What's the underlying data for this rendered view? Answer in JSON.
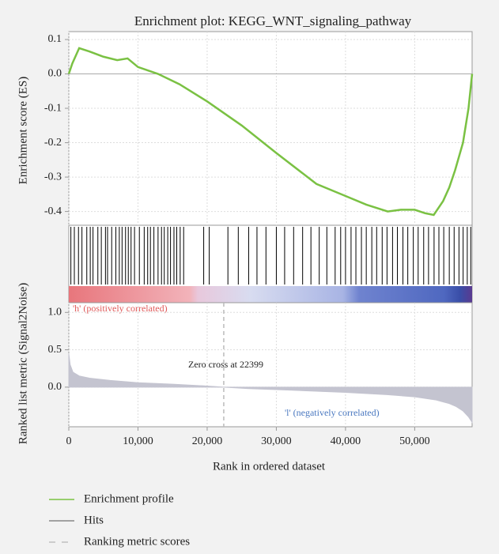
{
  "chart_data": [
    {
      "type": "line",
      "title": "Enrichment plot: KEGG_WNT_signaling_pathway",
      "ylabel": "Enrichment score (ES)",
      "xlim": [
        0,
        58300
      ],
      "ylim": [
        -0.44,
        0.123
      ],
      "yticks": [
        0.1,
        {
          "value": 0,
          "label": "0.0"
        },
        -0.1,
        -0.2,
        -0.3,
        -0.4
      ],
      "x": [
        0,
        500,
        1500,
        3000,
        5000,
        7000,
        8500,
        10000,
        12900,
        16000,
        20000,
        25000,
        30000,
        35800,
        40000,
        43000,
        46100,
        48000,
        50000,
        51500,
        52750,
        54100,
        55000,
        55840,
        56980,
        57780,
        58300
      ],
      "series": [
        {
          "name": "Enrichment profile",
          "color": "#7ac143",
          "values": [
            0,
            0.03,
            0.075,
            0.065,
            0.05,
            0.04,
            0.045,
            0.02,
            0,
            -0.03,
            -0.08,
            -0.15,
            -0.23,
            -0.32,
            -0.355,
            -0.38,
            -0.4,
            -0.395,
            -0.395,
            -0.405,
            -0.41,
            -0.37,
            -0.33,
            -0.28,
            -0.2,
            -0.1,
            0
          ]
        }
      ]
    },
    {
      "type": "rug",
      "xlim": [
        0,
        58300
      ],
      "series": [
        {
          "name": "Hits",
          "color": "#000000",
          "x": [
            300,
            800,
            1400,
            1900,
            2600,
            3100,
            3500,
            4200,
            4700,
            5300,
            5600,
            6200,
            6800,
            7300,
            7700,
            8200,
            8600,
            9000,
            9500,
            10200,
            10900,
            11400,
            11800,
            12300,
            12900,
            13400,
            13800,
            14300,
            14700,
            15200,
            15600,
            16100,
            16600,
            19500,
            20300,
            23000,
            24500,
            26000,
            27200,
            28500,
            30000,
            31200,
            32500,
            33800,
            35000,
            36200,
            37300,
            38500,
            39300,
            40000,
            40800,
            41500,
            42300,
            43000,
            43800,
            44500,
            45300,
            46000,
            46800,
            47500,
            48300,
            49000,
            49800,
            50500,
            51300,
            52000,
            52800,
            53500,
            54200,
            55000,
            55700,
            56400,
            57000,
            57600,
            58100
          ]
        }
      ]
    },
    {
      "type": "area",
      "ylabel": "Ranked list metric (Signal2Noise)",
      "xlabel": "Rank in ordered dataset",
      "xlim": [
        0,
        58300
      ],
      "ylim": [
        -0.53,
        1.13
      ],
      "xticks": [
        0,
        {
          "value": 10000,
          "label": "10,000"
        },
        {
          "value": 20000,
          "label": "20,000"
        },
        {
          "value": 30000,
          "label": "30,000"
        },
        {
          "value": 40000,
          "label": "40,000"
        },
        {
          "value": 50000,
          "label": "50,000"
        }
      ],
      "yticks": [
        {
          "value": 1,
          "label": "1.0"
        },
        0.5,
        {
          "value": 0,
          "label": "0.0"
        }
      ],
      "x": [
        0,
        200,
        600,
        1500,
        3000,
        6000,
        10000,
        15000,
        20000,
        22399,
        26000,
        32000,
        40000,
        46000,
        50000,
        53000,
        55000,
        56000,
        57000,
        57800,
        58300
      ],
      "series": [
        {
          "name": "Ranking metric scores",
          "color": "#c4c4d0",
          "values": [
            0.45,
            0.3,
            0.2,
            0.15,
            0.12,
            0.09,
            0.06,
            0.04,
            0.015,
            0,
            -0.02,
            -0.04,
            -0.07,
            -0.1,
            -0.13,
            -0.17,
            -0.22,
            -0.26,
            -0.32,
            -0.4,
            -0.47
          ]
        }
      ],
      "zero_cross": 22399,
      "annotations": [
        "'h' (positively correlated)",
        "Zero cross at 22399",
        "'l' (negatively correlated)"
      ]
    }
  ]
}
